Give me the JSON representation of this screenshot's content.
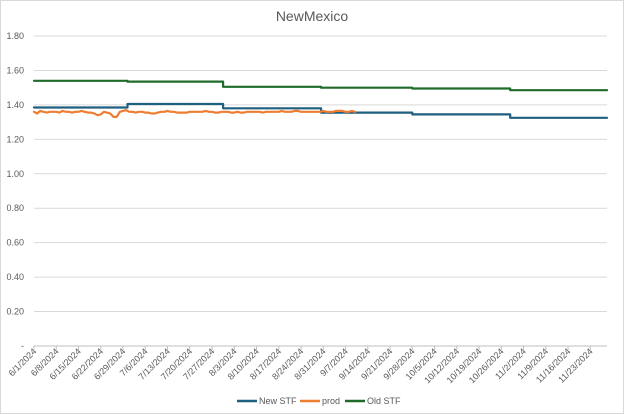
{
  "chart_data": {
    "type": "line",
    "title": "NewMexico",
    "xlabel": "",
    "ylabel": "",
    "ylim": [
      0,
      1.8
    ],
    "yticks": [
      "-",
      "0.20",
      "0.40",
      "0.60",
      "0.80",
      "1.00",
      "1.20",
      "1.40",
      "1.60",
      "1.80"
    ],
    "grid": true,
    "legend_position": "bottom",
    "x_categories": [
      "6/1/2024",
      "6/8/2024",
      "6/15/2024",
      "6/22/2024",
      "6/29/2024",
      "7/6/2024",
      "7/13/2024",
      "7/20/2024",
      "7/27/2024",
      "8/3/2024",
      "8/10/2024",
      "8/17/2024",
      "8/24/2024",
      "8/31/2024",
      "9/7/2024",
      "9/14/2024",
      "9/21/2024",
      "9/28/2024",
      "10/5/2024",
      "10/12/2024",
      "10/19/2024",
      "10/26/2024",
      "11/2/2024",
      "11/9/2024",
      "11/16/2024",
      "11/23/2024"
    ],
    "series": [
      {
        "name": "New STF",
        "color": "#1f5f7f",
        "segments": [
          {
            "from": 0,
            "to": 4.2,
            "value": 1.385
          },
          {
            "from": 4.2,
            "to": 8.5,
            "value": 1.405
          },
          {
            "from": 8.5,
            "to": 12.9,
            "value": 1.38
          },
          {
            "from": 12.9,
            "to": 17.0,
            "value": 1.355
          },
          {
            "from": 17.0,
            "to": 21.4,
            "value": 1.345
          },
          {
            "from": 21.4,
            "to": 25.75,
            "value": 1.325
          }
        ]
      },
      {
        "name": "prod",
        "color": "#ed7d31",
        "points": [
          [
            0.0,
            1.36
          ],
          [
            0.14,
            1.35
          ],
          [
            0.28,
            1.365
          ],
          [
            0.43,
            1.36
          ],
          [
            0.57,
            1.355
          ],
          [
            0.71,
            1.36
          ],
          [
            0.86,
            1.36
          ],
          [
            1.0,
            1.36
          ],
          [
            1.14,
            1.355
          ],
          [
            1.28,
            1.365
          ],
          [
            1.43,
            1.36
          ],
          [
            1.57,
            1.36
          ],
          [
            1.71,
            1.355
          ],
          [
            1.86,
            1.36
          ],
          [
            2.0,
            1.36
          ],
          [
            2.14,
            1.365
          ],
          [
            2.28,
            1.36
          ],
          [
            2.43,
            1.355
          ],
          [
            2.57,
            1.355
          ],
          [
            2.71,
            1.35
          ],
          [
            2.86,
            1.34
          ],
          [
            3.0,
            1.345
          ],
          [
            3.14,
            1.36
          ],
          [
            3.28,
            1.355
          ],
          [
            3.43,
            1.35
          ],
          [
            3.57,
            1.33
          ],
          [
            3.71,
            1.33
          ],
          [
            3.86,
            1.36
          ],
          [
            4.0,
            1.365
          ],
          [
            4.14,
            1.37
          ],
          [
            4.28,
            1.36
          ],
          [
            4.43,
            1.36
          ],
          [
            4.57,
            1.355
          ],
          [
            4.71,
            1.36
          ],
          [
            4.86,
            1.36
          ],
          [
            5.0,
            1.355
          ],
          [
            5.14,
            1.355
          ],
          [
            5.28,
            1.35
          ],
          [
            5.43,
            1.35
          ],
          [
            5.57,
            1.355
          ],
          [
            5.71,
            1.36
          ],
          [
            5.86,
            1.36
          ],
          [
            6.0,
            1.365
          ],
          [
            6.14,
            1.36
          ],
          [
            6.28,
            1.36
          ],
          [
            6.43,
            1.355
          ],
          [
            6.57,
            1.355
          ],
          [
            6.71,
            1.355
          ],
          [
            6.86,
            1.355
          ],
          [
            7.0,
            1.36
          ],
          [
            7.14,
            1.36
          ],
          [
            7.28,
            1.36
          ],
          [
            7.43,
            1.36
          ],
          [
            7.57,
            1.36
          ],
          [
            7.71,
            1.365
          ],
          [
            7.86,
            1.36
          ],
          [
            8.0,
            1.36
          ],
          [
            8.14,
            1.355
          ],
          [
            8.28,
            1.355
          ],
          [
            8.43,
            1.36
          ],
          [
            8.57,
            1.36
          ],
          [
            8.71,
            1.36
          ],
          [
            8.86,
            1.355
          ],
          [
            9.0,
            1.355
          ],
          [
            9.14,
            1.36
          ],
          [
            9.28,
            1.355
          ],
          [
            9.43,
            1.355
          ],
          [
            9.57,
            1.36
          ],
          [
            9.71,
            1.36
          ],
          [
            9.86,
            1.36
          ],
          [
            10.0,
            1.36
          ],
          [
            10.14,
            1.36
          ],
          [
            10.28,
            1.355
          ],
          [
            10.43,
            1.36
          ],
          [
            10.57,
            1.36
          ],
          [
            10.71,
            1.36
          ],
          [
            10.86,
            1.36
          ],
          [
            11.0,
            1.36
          ],
          [
            11.14,
            1.365
          ],
          [
            11.28,
            1.36
          ],
          [
            11.43,
            1.36
          ],
          [
            11.57,
            1.36
          ],
          [
            11.71,
            1.365
          ],
          [
            11.86,
            1.365
          ],
          [
            12.0,
            1.36
          ],
          [
            12.14,
            1.36
          ],
          [
            12.28,
            1.36
          ],
          [
            12.43,
            1.36
          ],
          [
            12.57,
            1.36
          ],
          [
            12.71,
            1.36
          ],
          [
            12.86,
            1.36
          ],
          [
            13.0,
            1.365
          ],
          [
            13.14,
            1.36
          ],
          [
            13.28,
            1.36
          ],
          [
            13.43,
            1.36
          ],
          [
            13.57,
            1.365
          ],
          [
            13.71,
            1.365
          ],
          [
            13.86,
            1.365
          ],
          [
            14.0,
            1.36
          ],
          [
            14.14,
            1.36
          ],
          [
            14.28,
            1.365
          ],
          [
            14.43,
            1.36
          ]
        ]
      },
      {
        "name": "Old STF",
        "color": "#1e6b2a",
        "segments": [
          {
            "from": 0,
            "to": 4.2,
            "value": 1.54
          },
          {
            "from": 4.2,
            "to": 8.5,
            "value": 1.535
          },
          {
            "from": 8.5,
            "to": 12.9,
            "value": 1.505
          },
          {
            "from": 12.9,
            "to": 17.0,
            "value": 1.5
          },
          {
            "from": 17.0,
            "to": 21.4,
            "value": 1.495
          },
          {
            "from": 21.4,
            "to": 25.75,
            "value": 1.485
          }
        ]
      }
    ]
  }
}
